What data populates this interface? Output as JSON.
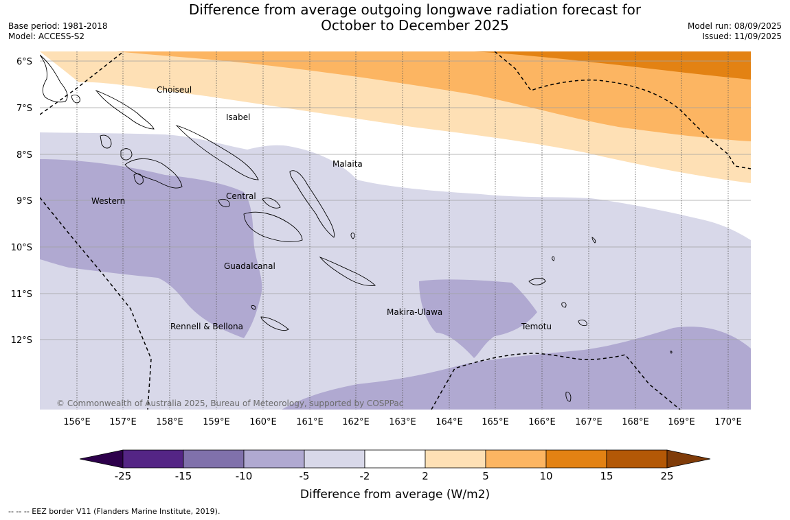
{
  "title": {
    "line1": "Difference from average outgoing longwave radiation forecast for",
    "line2": "October to December 2025"
  },
  "meta_left": {
    "base_period": "Base period: 1981-2018",
    "model": "Model: ACCESS-S2"
  },
  "meta_right": {
    "model_run": "Model run: 08/09/2025",
    "issued": "Issued: 11/09/2025"
  },
  "map": {
    "copyright": "© Commonwealth of Australia 2025, Bureau of Meteorology, supported by COSPPac",
    "lat_labels": [
      "6°S",
      "7°S",
      "8°S",
      "9°S",
      "10°S",
      "11°S",
      "12°S"
    ],
    "lon_labels": [
      "156°E",
      "157°E",
      "158°E",
      "159°E",
      "160°E",
      "161°E",
      "162°E",
      "163°E",
      "164°E",
      "165°E",
      "166°E",
      "167°E",
      "168°E",
      "169°E",
      "170°E"
    ],
    "provinces": [
      "Choiseul",
      "Isabel",
      "Malaita",
      "Western",
      "Central",
      "Guadalcanal",
      "Makira-Ulawa",
      "Temotu",
      "Rennell & Bellona"
    ],
    "colors": {
      "neg_lt_-15": "#542585",
      "neg_-15_-10": "#8071ab",
      "neg_-10_-5": "#b0a9d1",
      "neg_-5_-2": "#d8d8e9",
      "neutral": "#ffffff",
      "pos_2_5": "#fee0b5",
      "pos_5_10": "#fcb562",
      "pos_10_15": "#e38213",
      "pos_15_25": "#b35806",
      "pos_gt_25": "#7f3b08",
      "neg_lt_-25": "#2d004b"
    }
  },
  "colorbar": {
    "ticks": [
      "-25",
      "-15",
      "-10",
      "-5",
      "-2",
      "2",
      "5",
      "10",
      "15",
      "25"
    ],
    "label": "Difference from average (W/m2)"
  },
  "footnote": "-- -- -- EEZ border V11 (Flanders Marine Institute, 2019)."
}
